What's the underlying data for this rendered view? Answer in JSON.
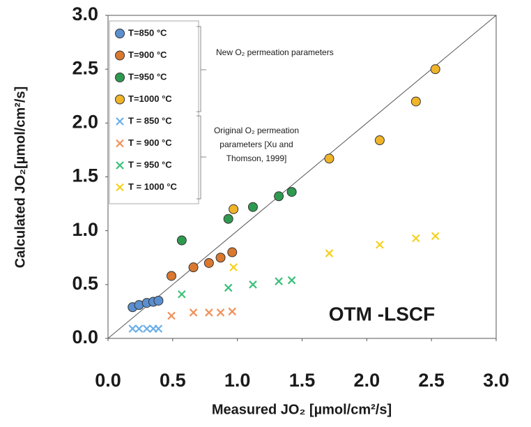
{
  "chart_data": {
    "type": "scatter",
    "x_label": "Measured JO₂ [µmol/cm²/s]",
    "y_label": "Calculated JO₂[µmol/cm²/s]",
    "xlim": [
      0,
      3
    ],
    "ylim": [
      0,
      3
    ],
    "xticks": [
      {
        "value": 0,
        "label": "0.0"
      },
      0.5,
      {
        "value": 1,
        "label": "1.0"
      },
      1.5,
      {
        "value": 2,
        "label": "2.0"
      },
      2.5,
      {
        "value": 3,
        "label": "3.0"
      }
    ],
    "yticks": [
      {
        "value": 0,
        "label": "0.0"
      },
      0.5,
      {
        "value": 1,
        "label": "1.0"
      },
      1.5,
      {
        "value": 2,
        "label": "2.0"
      },
      2.5,
      {
        "value": 3,
        "label": "3.0"
      }
    ],
    "diagonal": true,
    "legend": "upper left",
    "annotations": {
      "new": "New O₂ permeation parameters",
      "original": [
        "Original O₂ permeation",
        "parameters [Xu and",
        "Thomson, 1999]"
      ],
      "label": "OTM -LSCF"
    },
    "series": [
      {
        "name": "T=850 °C",
        "color": "#5b8fd0",
        "marker": "o",
        "x": [
          0.19,
          0.24,
          0.3,
          0.35,
          0.39
        ],
        "values": [
          0.29,
          0.31,
          0.33,
          0.34,
          0.35
        ]
      },
      {
        "name": "T=900 °C",
        "color": "#d9782e",
        "marker": "o",
        "x": [
          0.49,
          0.66,
          0.78,
          0.87,
          0.96
        ],
        "values": [
          0.58,
          0.66,
          0.7,
          0.75,
          0.8
        ]
      },
      {
        "name": "T=950 °C",
        "color": "#2e9a50",
        "marker": "o",
        "x": [
          0.57,
          0.93,
          1.12,
          1.32,
          1.42
        ],
        "values": [
          0.91,
          1.11,
          1.22,
          1.32,
          1.36
        ]
      },
      {
        "name": "T=1000 °C",
        "color": "#f0b429",
        "marker": "o",
        "x": [
          0.97,
          1.71,
          2.1,
          2.38,
          2.53
        ],
        "values": [
          1.2,
          1.67,
          1.84,
          2.2,
          2.5
        ]
      },
      {
        "name": "T = 850 °C",
        "color": "#6aaee8",
        "marker": "x",
        "x": [
          0.19,
          0.24,
          0.3,
          0.35,
          0.39
        ],
        "values": [
          0.09,
          0.09,
          0.09,
          0.09,
          0.09
        ]
      },
      {
        "name": "T = 900 °C",
        "color": "#f0915a",
        "marker": "x",
        "x": [
          0.49,
          0.66,
          0.78,
          0.87,
          0.96
        ],
        "values": [
          0.21,
          0.24,
          0.24,
          0.24,
          0.25
        ]
      },
      {
        "name": "T = 950 °C",
        "color": "#3cc07a",
        "marker": "x",
        "x": [
          0.57,
          0.93,
          1.12,
          1.32,
          1.42
        ],
        "values": [
          0.41,
          0.47,
          0.5,
          0.53,
          0.54
        ]
      },
      {
        "name": "T = 1000 °C",
        "color": "#f5d020",
        "marker": "x",
        "x": [
          0.97,
          1.71,
          2.1,
          2.38,
          2.53
        ],
        "values": [
          0.66,
          0.79,
          0.87,
          0.93,
          0.95
        ]
      }
    ]
  }
}
